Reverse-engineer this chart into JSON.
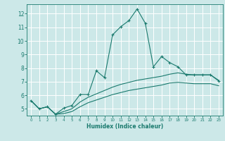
{
  "xlabel": "Humidex (Indice chaleur)",
  "bg_color": "#cce8e8",
  "grid_color": "#ffffff",
  "line_color": "#1a7a6e",
  "xlim": [
    -0.5,
    23.5
  ],
  "ylim": [
    4.5,
    12.7
  ],
  "yticks": [
    5,
    6,
    7,
    8,
    9,
    10,
    11,
    12
  ],
  "xticks": [
    0,
    1,
    2,
    3,
    4,
    5,
    6,
    7,
    8,
    9,
    10,
    11,
    12,
    13,
    14,
    15,
    16,
    17,
    18,
    19,
    20,
    21,
    22,
    23
  ],
  "curve1_x": [
    0,
    1,
    2,
    3,
    4,
    5,
    6,
    7,
    8,
    9,
    10,
    11,
    12,
    13,
    14,
    15,
    16,
    17,
    18,
    19,
    20,
    21,
    22,
    23
  ],
  "curve1_y": [
    5.6,
    5.0,
    5.15,
    4.6,
    5.05,
    5.25,
    6.05,
    6.05,
    7.8,
    7.3,
    10.45,
    11.05,
    11.5,
    12.35,
    11.3,
    8.1,
    8.85,
    8.4,
    8.1,
    7.5,
    7.5,
    7.5,
    7.5,
    7.05
  ],
  "curve2_x": [
    0,
    1,
    2,
    3,
    4,
    5,
    6,
    7,
    8,
    9,
    10,
    11,
    12,
    13,
    14,
    15,
    16,
    17,
    18,
    19,
    20,
    21,
    22,
    23
  ],
  "curve2_y": [
    5.6,
    5.0,
    5.15,
    4.6,
    4.8,
    5.0,
    5.5,
    5.85,
    6.1,
    6.35,
    6.6,
    6.8,
    6.95,
    7.1,
    7.2,
    7.3,
    7.4,
    7.55,
    7.65,
    7.55,
    7.5,
    7.5,
    7.5,
    7.1
  ],
  "curve3_x": [
    0,
    1,
    2,
    3,
    4,
    5,
    6,
    7,
    8,
    9,
    10,
    11,
    12,
    13,
    14,
    15,
    16,
    17,
    18,
    19,
    20,
    21,
    22,
    23
  ],
  "curve3_y": [
    5.6,
    5.0,
    5.15,
    4.6,
    4.65,
    4.8,
    5.15,
    5.45,
    5.65,
    5.85,
    6.05,
    6.2,
    6.35,
    6.45,
    6.55,
    6.65,
    6.75,
    6.9,
    6.95,
    6.9,
    6.85,
    6.85,
    6.85,
    6.7
  ]
}
